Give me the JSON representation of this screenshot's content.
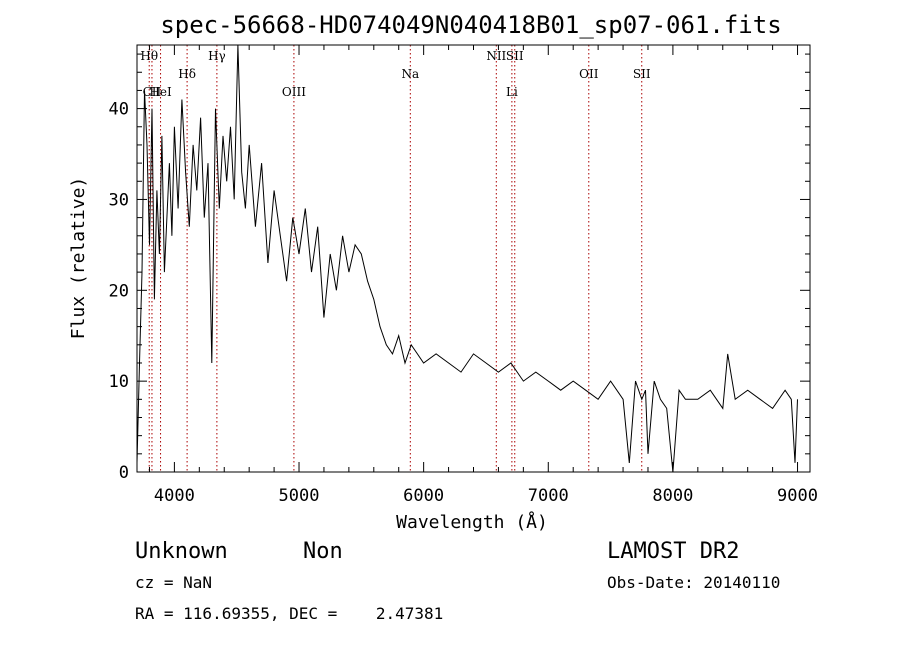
{
  "chart_data": {
    "type": "line",
    "title": "spec-56668-HD074049N040418B01_sp07-061.fits",
    "xlabel": "Wavelength (Å)",
    "ylabel": "Flux (relative)",
    "xlim": [
      3700,
      9100
    ],
    "ylim": [
      0,
      47
    ],
    "xticks": [
      4000,
      5000,
      6000,
      7000,
      8000,
      9000
    ],
    "yticks": [
      0,
      10,
      20,
      30,
      40
    ],
    "series": [
      {
        "x": [
          3700,
          3720,
          3740,
          3760,
          3780,
          3800,
          3820,
          3840,
          3860,
          3880,
          3900,
          3920,
          3940,
          3960,
          3980,
          4000,
          4030,
          4060,
          4090,
          4120,
          4150,
          4180,
          4210,
          4240,
          4270,
          4300,
          4330,
          4360,
          4390,
          4420,
          4450,
          4480,
          4510,
          4540,
          4570,
          4600,
          4650,
          4700,
          4750,
          4800,
          4850,
          4900,
          4950,
          5000,
          5050,
          5100,
          5150,
          5200,
          5250,
          5300,
          5350,
          5400,
          5450,
          5500,
          5550,
          5600,
          5650,
          5700,
          5750,
          5800,
          5850,
          5900,
          5950,
          6000,
          6100,
          6200,
          6300,
          6400,
          6500,
          6600,
          6700,
          6800,
          6900,
          7000,
          7100,
          7200,
          7300,
          7400,
          7500,
          7600,
          7650,
          7700,
          7750,
          7780,
          7800,
          7850,
          7900,
          7950,
          8000,
          8050,
          8100,
          8200,
          8300,
          8400,
          8440,
          8500,
          8600,
          8700,
          8800,
          8900,
          8950,
          8980,
          9000
        ],
        "values": [
          1,
          12,
          22,
          42,
          36,
          25,
          40,
          19,
          31,
          24,
          37,
          22,
          28,
          34,
          26,
          38,
          29,
          41,
          33,
          27,
          36,
          31,
          39,
          28,
          34,
          12,
          40,
          29,
          37,
          32,
          38,
          30,
          47,
          33,
          29,
          36,
          27,
          34,
          23,
          31,
          26,
          21,
          28,
          24,
          29,
          22,
          27,
          17,
          24,
          20,
          26,
          22,
          25,
          24,
          21,
          19,
          16,
          14,
          13,
          15,
          12,
          14,
          13,
          12,
          13,
          12,
          11,
          13,
          12,
          11,
          12,
          10,
          11,
          10,
          9,
          10,
          9,
          8,
          10,
          8,
          1,
          10,
          8,
          9,
          2,
          10,
          8,
          7,
          0,
          9,
          8,
          8,
          9,
          7,
          13,
          8,
          9,
          8,
          7,
          9,
          8,
          1,
          8
        ]
      }
    ],
    "lines": [
      {
        "label": "Hθ",
        "x": 3798,
        "row": 1
      },
      {
        "label": "CII",
        "x": 3820,
        "row": 3
      },
      {
        "label": "HeI",
        "x": 3889,
        "row": 3
      },
      {
        "label": "Hδ",
        "x": 4102,
        "row": 2
      },
      {
        "label": "Hγ",
        "x": 4341,
        "row": 1
      },
      {
        "label": "OIII",
        "x": 4959,
        "row": 3
      },
      {
        "label": "Na",
        "x": 5893,
        "row": 2
      },
      {
        "label": "NII",
        "x": 6583,
        "row": 1
      },
      {
        "label": "Li",
        "x": 6708,
        "row": 3
      },
      {
        "label": "SII",
        "x": 6731,
        "row": 1
      },
      {
        "label": "OII",
        "x": 7325,
        "row": 2
      },
      {
        "label": "SII",
        "x": 7750,
        "row": 2
      }
    ]
  },
  "info": {
    "object": "Unknown",
    "class": "Non",
    "survey": "LAMOST DR2",
    "cz": "cz = NaN",
    "obs_date": "Obs-Date: 20140110",
    "coords": "RA = 116.69355, DEC =    2.47381"
  },
  "colors": {
    "axis": "#000000",
    "spectrum": "#000000",
    "line_marker": "#aa0000"
  }
}
